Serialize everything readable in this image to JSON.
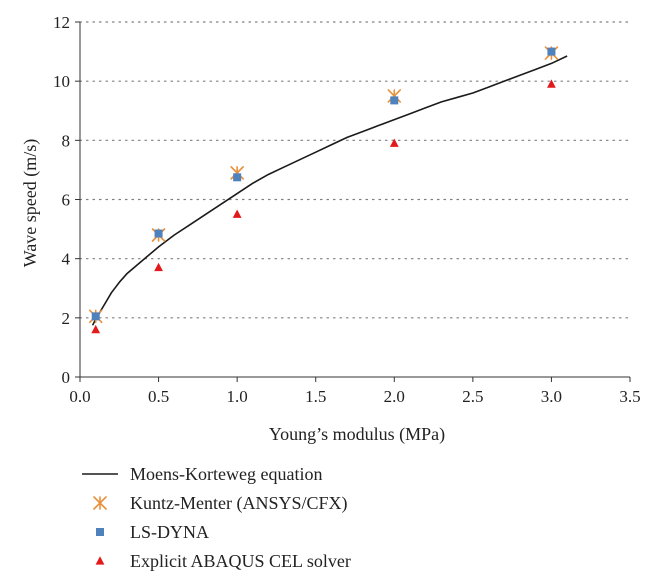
{
  "colors": {
    "line": "#1b1b1b",
    "kuntz_marker": "#e8903a",
    "lsdyna_marker": "#4f81bd",
    "abaqus_marker": "#e31a1c",
    "grid": "#7f7f7f",
    "axis": "#333333"
  },
  "chart_data": {
    "type": "scatter",
    "title": "",
    "xlabel": "Young’s modulus (MPa)",
    "ylabel": "Wave speed (m/s)",
    "xlim": [
      0.0,
      3.5
    ],
    "ylim": [
      0,
      12
    ],
    "x_ticks": [
      "0.0",
      "0.5",
      "1.0",
      "1.5",
      "2.0",
      "2.5",
      "3.0",
      "3.5"
    ],
    "y_ticks": [
      "0",
      "2",
      "4",
      "6",
      "8",
      "10",
      "12"
    ],
    "grid": "horizontal dotted",
    "legend_position": "bottom-left, below plot",
    "series": [
      {
        "name": "Moens-Korteweg equation",
        "kind": "line",
        "x": [
          0.08,
          0.1,
          0.15,
          0.2,
          0.25,
          0.3,
          0.4,
          0.5,
          0.6,
          0.7,
          0.8,
          0.9,
          1.0,
          1.1,
          1.2,
          1.3,
          1.4,
          1.5,
          1.6,
          1.7,
          1.8,
          1.9,
          2.0,
          2.1,
          2.2,
          2.3,
          2.4,
          2.5,
          2.6,
          2.7,
          2.8,
          2.9,
          3.0,
          3.1
        ],
        "y": [
          1.75,
          1.95,
          2.4,
          2.85,
          3.2,
          3.5,
          3.95,
          4.4,
          4.8,
          5.15,
          5.5,
          5.85,
          6.2,
          6.55,
          6.85,
          7.1,
          7.35,
          7.6,
          7.85,
          8.1,
          8.3,
          8.5,
          8.7,
          8.9,
          9.1,
          9.3,
          9.45,
          9.6,
          9.8,
          10.0,
          10.2,
          10.4,
          10.6,
          10.85
        ]
      },
      {
        "name": "Kuntz-Menter (ANSYS/CFX)",
        "kind": "asterisk",
        "x": [
          0.1,
          0.5,
          1.0,
          2.0,
          3.0
        ],
        "y": [
          2.05,
          4.8,
          6.9,
          9.5,
          10.95
        ]
      },
      {
        "name": "LS-DYNA",
        "kind": "square",
        "x": [
          0.1,
          0.5,
          1.0,
          2.0,
          3.0
        ],
        "y": [
          2.05,
          4.85,
          6.75,
          9.35,
          11.0
        ]
      },
      {
        "name": "Explicit ABAQUS CEL solver",
        "kind": "triangle",
        "x": [
          0.1,
          0.5,
          1.0,
          2.0,
          3.0
        ],
        "y": [
          1.6,
          3.7,
          5.5,
          7.9,
          9.9
        ]
      }
    ]
  }
}
